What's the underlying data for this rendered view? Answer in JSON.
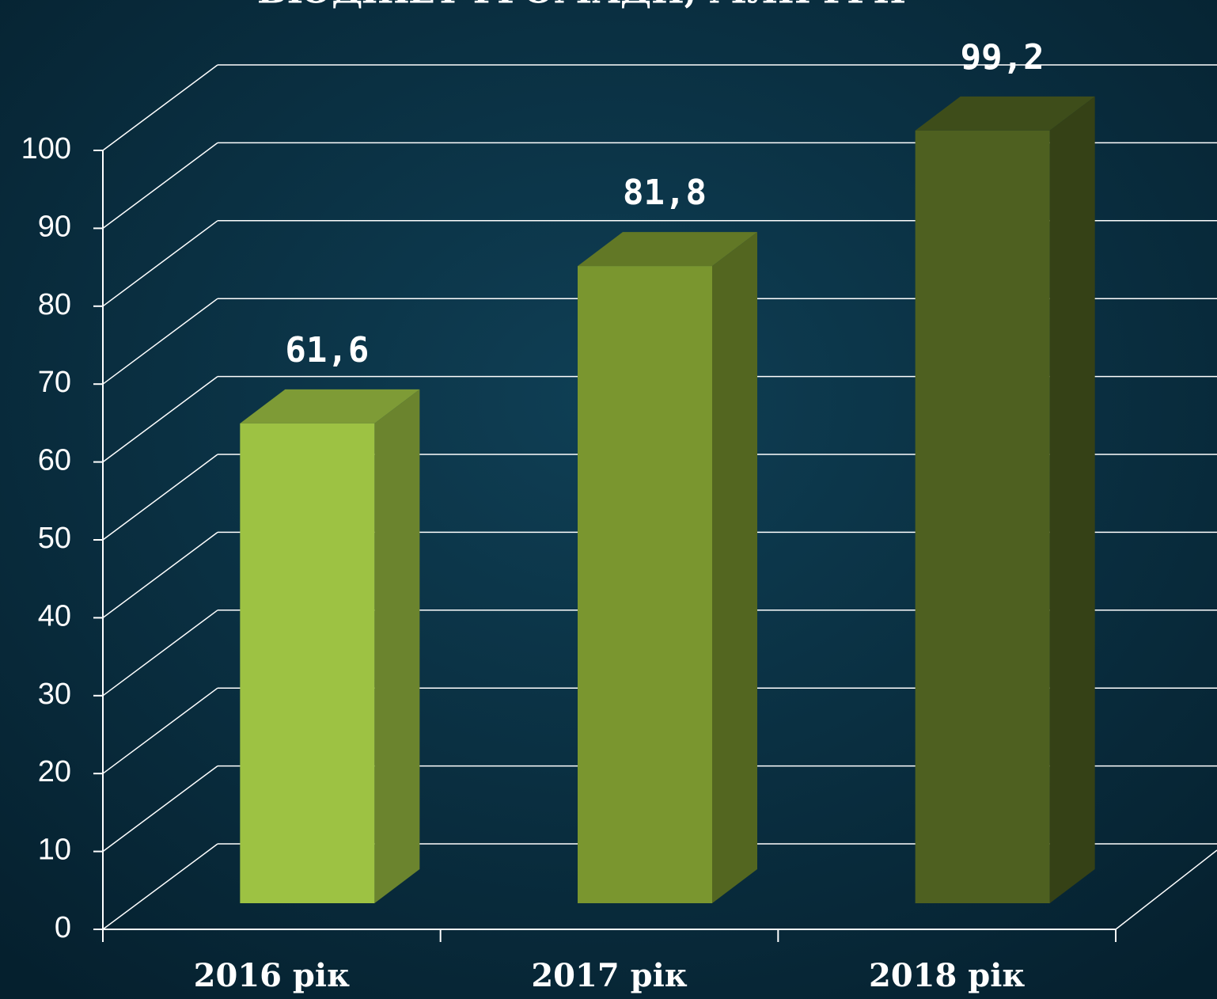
{
  "chart_data": {
    "type": "bar3d",
    "title": "БЮДЖЕТ ГРОМАДИ, МЛН ГРН",
    "categories": [
      "2016 рік",
      "2017 рік",
      "2018 рік"
    ],
    "values": [
      61.6,
      81.8,
      99.2
    ],
    "value_labels": [
      "61,6",
      "81,8",
      "99,2"
    ],
    "colors": [
      "#9dc243",
      "#7a962f",
      "#4e6020"
    ],
    "ylim": [
      0,
      100
    ],
    "yticks": [
      0,
      10,
      20,
      30,
      40,
      50,
      60,
      70,
      80,
      90,
      100
    ],
    "grid": true
  }
}
